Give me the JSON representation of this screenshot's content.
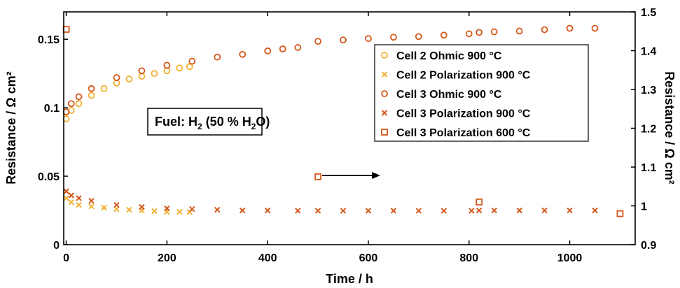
{
  "chart_data": {
    "type": "scatter",
    "xlabel": "Time / h",
    "ylabel_left": "Resistance / Ω cm²",
    "ylabel_right": "Resistance / Ω cm²",
    "xlim": [
      -5,
      1130
    ],
    "ylim_left": [
      0,
      0.17
    ],
    "ylim_right": [
      0.9,
      1.5
    ],
    "xticks": [
      0,
      200,
      400,
      600,
      800,
      1000
    ],
    "yticks_left": [
      0,
      0.05,
      0.1,
      0.15
    ],
    "yticks_right": [
      0.9,
      1,
      1.1,
      1.2,
      1.3,
      1.4,
      1.5
    ],
    "grid": false,
    "legend_position": "top-right",
    "annotation": {
      "prefix": "Fuel: H",
      "sub1": "2",
      "mid": " (50 % H",
      "sub2": "2",
      "suffix": "O)"
    },
    "arrow_direction": "right",
    "series": [
      {
        "name": "Cell 2 Ohmic 900 °C",
        "marker": "circle",
        "color": "#f2b134",
        "axis": "left",
        "x": [
          0,
          10,
          25,
          50,
          75,
          100,
          125,
          150,
          175,
          200,
          225,
          245
        ],
        "y": [
          0.092,
          0.098,
          0.103,
          0.109,
          0.114,
          0.118,
          0.121,
          0.123,
          0.125,
          0.127,
          0.129,
          0.13
        ]
      },
      {
        "name": "Cell 2 Polarization 900 °C",
        "marker": "x",
        "color": "#f2b134",
        "axis": "left",
        "x": [
          0,
          10,
          25,
          50,
          75,
          100,
          125,
          150,
          175,
          200,
          225,
          245
        ],
        "y": [
          0.034,
          0.031,
          0.029,
          0.028,
          0.027,
          0.026,
          0.0255,
          0.025,
          0.0245,
          0.024,
          0.024,
          0.0238
        ]
      },
      {
        "name": "Cell 3 Ohmic 900 °C",
        "marker": "circle",
        "color": "#d4581c",
        "axis": "left",
        "x": [
          0,
          10,
          25,
          50,
          100,
          150,
          200,
          250,
          300,
          350,
          400,
          430,
          460,
          500,
          550,
          600,
          650,
          700,
          750,
          800,
          820,
          850,
          900,
          950,
          1000,
          1050
        ],
        "y": [
          0.097,
          0.103,
          0.108,
          0.114,
          0.122,
          0.127,
          0.131,
          0.134,
          0.137,
          0.139,
          0.1415,
          0.143,
          0.144,
          0.1485,
          0.1495,
          0.1505,
          0.1515,
          0.152,
          0.153,
          0.154,
          0.155,
          0.1555,
          0.156,
          0.157,
          0.158,
          0.158
        ]
      },
      {
        "name": "Cell 3 Polarization 900 °C",
        "marker": "x",
        "color": "#d4581c",
        "axis": "left",
        "x": [
          0,
          10,
          25,
          50,
          100,
          150,
          200,
          250,
          300,
          350,
          400,
          460,
          500,
          550,
          600,
          650,
          700,
          750,
          805,
          820,
          850,
          900,
          950,
          1000,
          1050
        ],
        "y": [
          0.039,
          0.036,
          0.034,
          0.032,
          0.029,
          0.0275,
          0.0265,
          0.026,
          0.0255,
          0.025,
          0.025,
          0.0248,
          0.0248,
          0.0248,
          0.0248,
          0.0248,
          0.0248,
          0.0248,
          0.0248,
          0.025,
          0.025,
          0.025,
          0.025,
          0.025,
          0.025
        ]
      },
      {
        "name": "Cell 3 Polarization 600 °C",
        "marker": "square",
        "color": "#d4581c",
        "axis": "right",
        "x": [
          0,
          500,
          820,
          1100
        ],
        "y": [
          1.455,
          1.075,
          1.01,
          0.98
        ]
      }
    ]
  }
}
